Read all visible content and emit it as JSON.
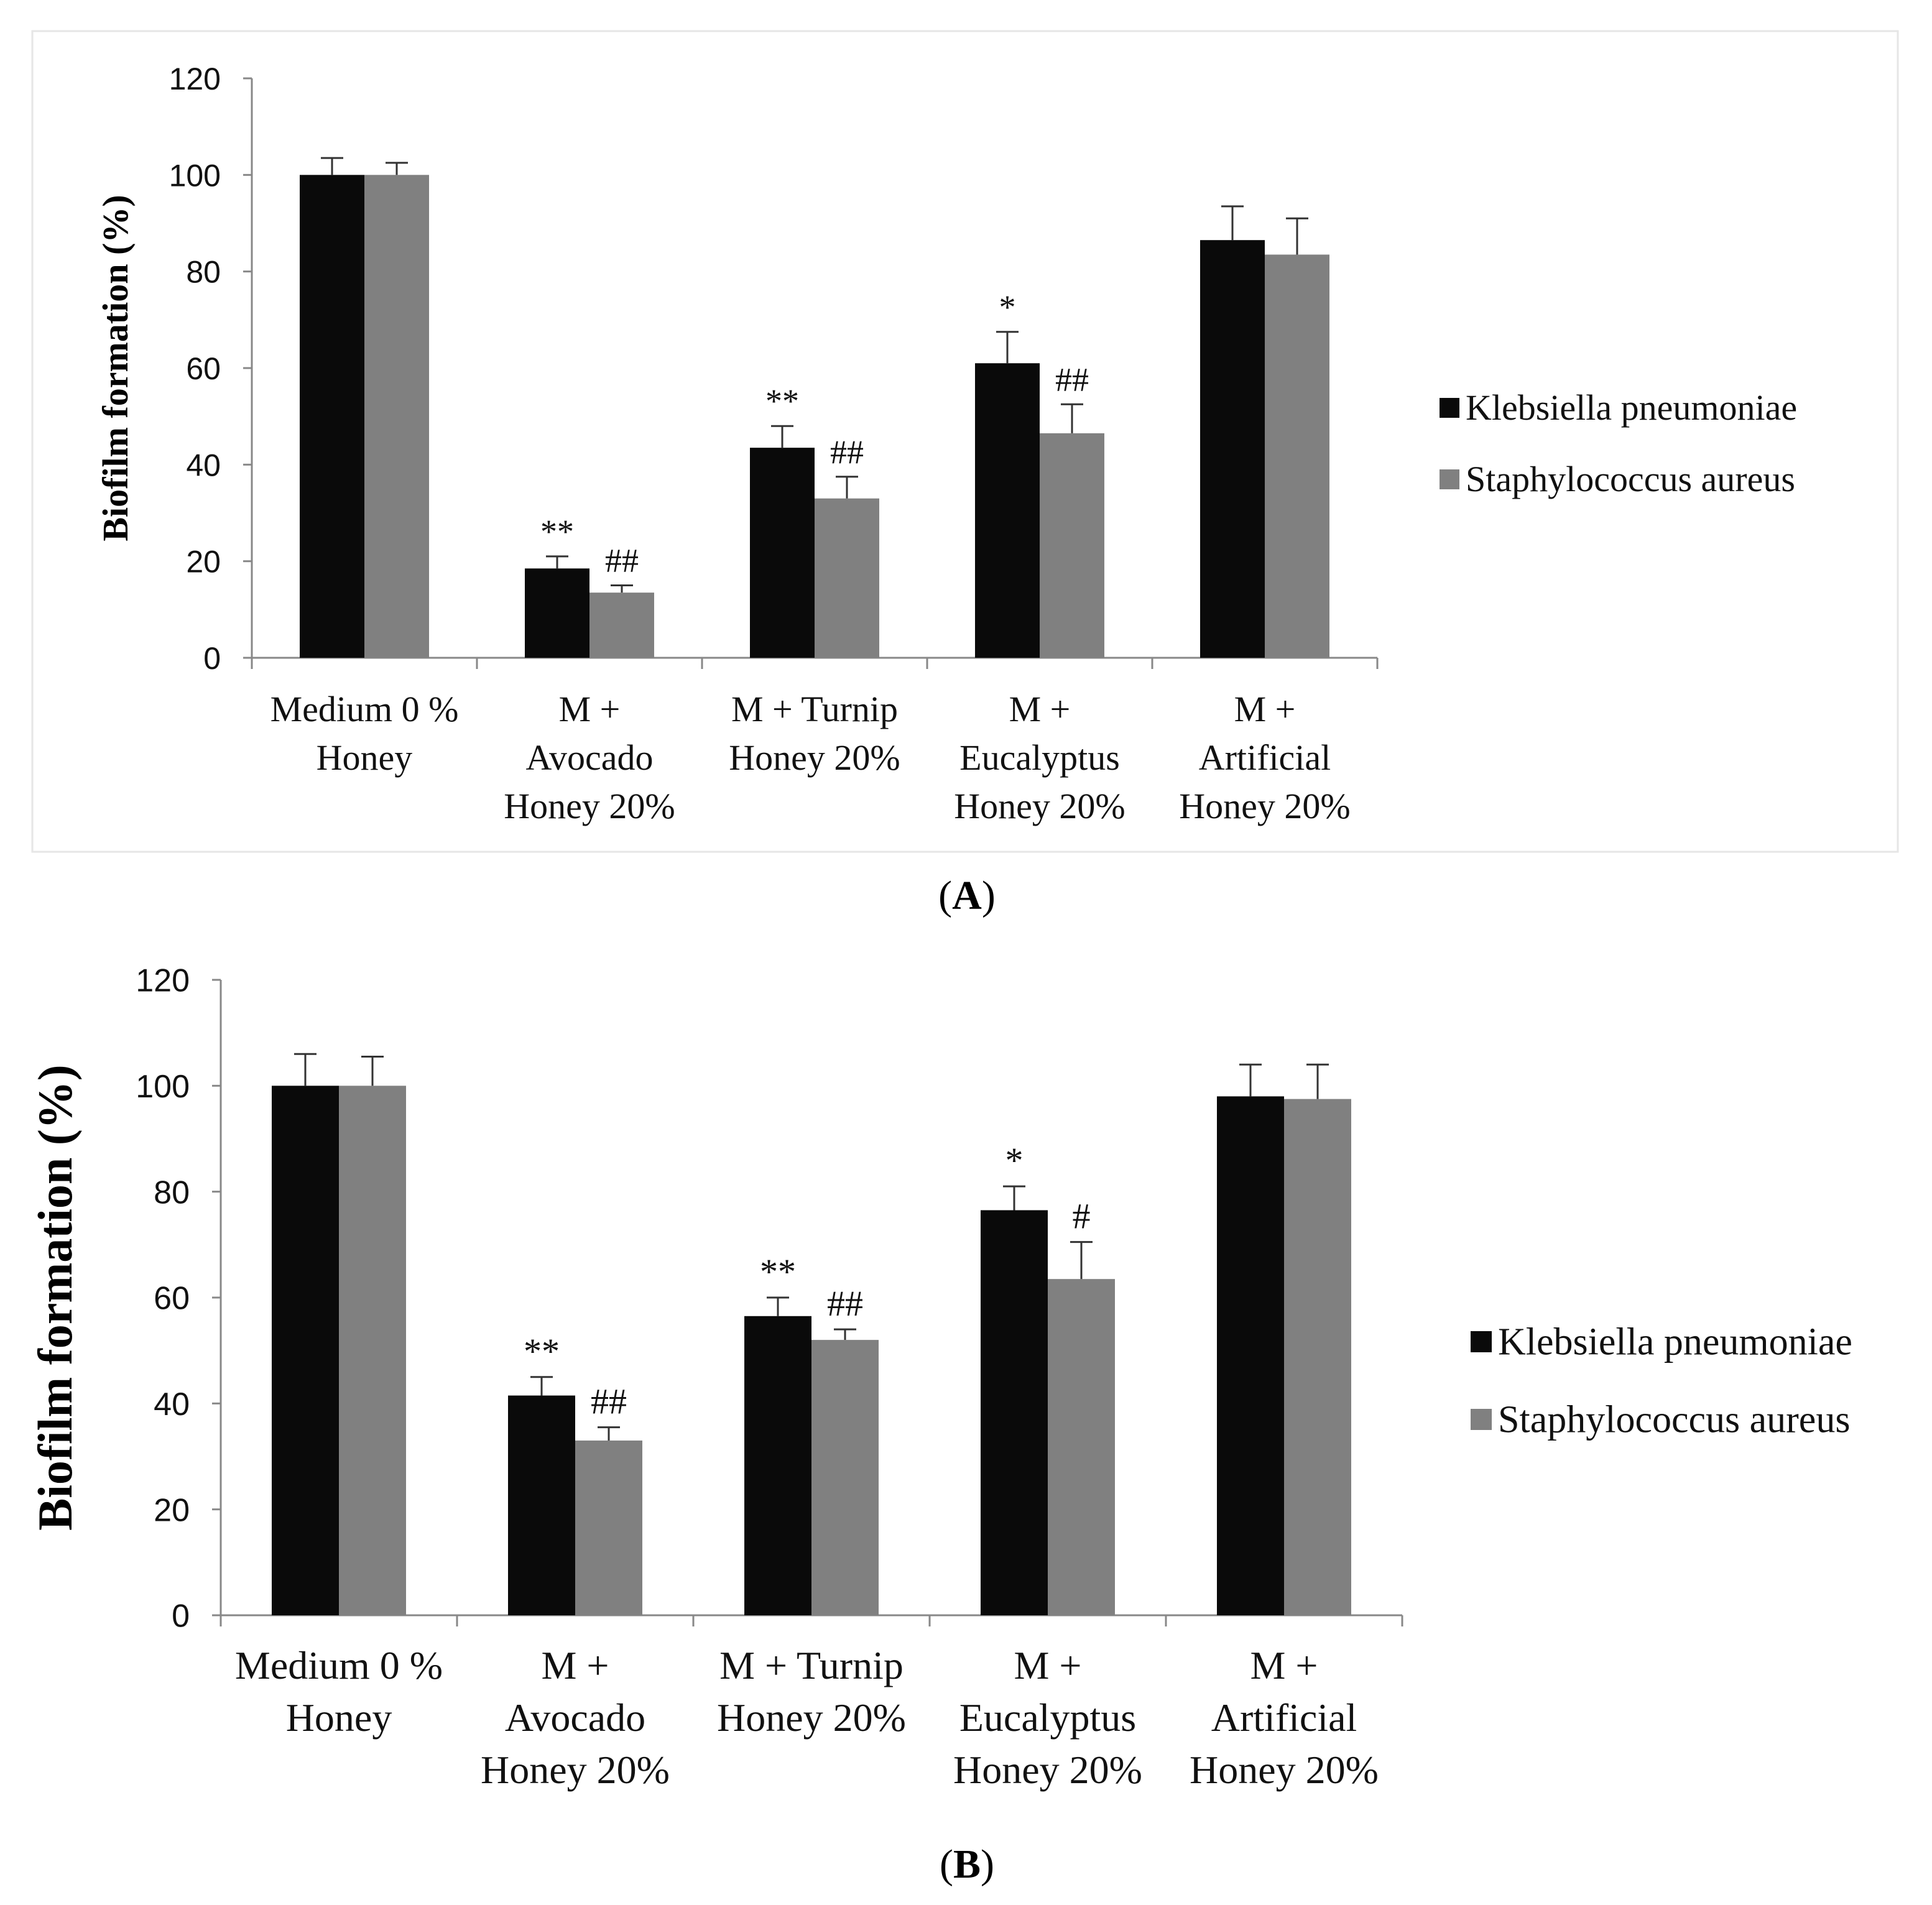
{
  "chart_data": [
    {
      "type": "bar",
      "panel_label": "A",
      "ylabel": "Biofilm  formation (%)",
      "xlabel": "",
      "ylim": [
        0,
        120
      ],
      "yticks": [
        0,
        20,
        40,
        60,
        80,
        100,
        120
      ],
      "categories": [
        [
          "Medium 0 %",
          "Honey"
        ],
        [
          "M +",
          "Avocado",
          "Honey 20%"
        ],
        [
          "M + Turnip",
          "Honey 20%"
        ],
        [
          "M +",
          "Eucalyptus",
          "Honey 20%"
        ],
        [
          "M +",
          "Artificial",
          "Honey 20%"
        ]
      ],
      "series": [
        {
          "name": "Klebsiella pneumoniae",
          "color": "#0a0a0a",
          "values": [
            100,
            18.5,
            43.5,
            61,
            86.5
          ],
          "errors": [
            3.5,
            2.5,
            4.5,
            6.5,
            7
          ],
          "annotations": [
            "",
            "**",
            "**",
            "*",
            ""
          ]
        },
        {
          "name": "Staphylococcus aureus",
          "color": "#808080",
          "values": [
            100,
            13.5,
            33,
            46.5,
            83.5
          ],
          "errors": [
            2.5,
            1.5,
            4.5,
            6,
            7.5
          ],
          "annotations": [
            "",
            "##",
            "##",
            "##",
            ""
          ]
        }
      ],
      "legend": "right"
    },
    {
      "type": "bar",
      "panel_label": "B",
      "ylabel": "Biofilm  formation (%)",
      "xlabel": "",
      "ylim": [
        0,
        120
      ],
      "yticks": [
        0,
        20,
        40,
        60,
        80,
        100,
        120
      ],
      "categories": [
        [
          "Medium 0 %",
          "Honey"
        ],
        [
          "M +",
          "Avocado",
          "Honey 20%"
        ],
        [
          "M + Turnip",
          "Honey 20%"
        ],
        [
          "M +",
          "Eucalyptus",
          "Honey 20%"
        ],
        [
          "M +",
          "Artificial",
          "Honey 20%"
        ]
      ],
      "series": [
        {
          "name": "Klebsiella pneumoniae",
          "color": "#0a0a0a",
          "values": [
            100,
            41.5,
            56.5,
            76.5,
            98
          ],
          "errors": [
            6,
            3.5,
            3.5,
            4.5,
            6
          ],
          "annotations": [
            "",
            "**",
            "**",
            "*",
            ""
          ]
        },
        {
          "name": "Staphylococcus aureus",
          "color": "#808080",
          "values": [
            100,
            33,
            52,
            63.5,
            97.5
          ],
          "errors": [
            5.5,
            2.5,
            2,
            7,
            6.5
          ],
          "annotations": [
            "",
            "##",
            "##",
            "#",
            ""
          ]
        }
      ],
      "legend": "right"
    }
  ]
}
